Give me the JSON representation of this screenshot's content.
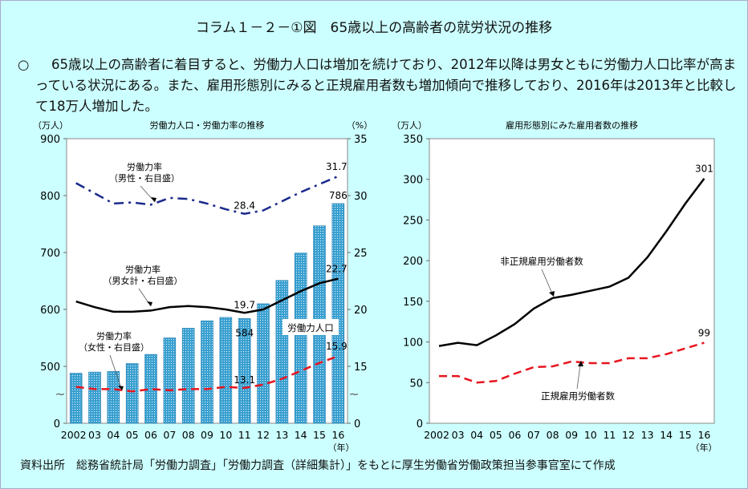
{
  "title": "コラム１－２－①図　65歳以上の高齢者の就労状況の推移",
  "summary": {
    "bullet": "○",
    "text": "65歳以上の高齢者に着目すると、労働力人口は増加を続けており、2012年以降は男女ともに労働力人口比率が高まっている状況にある。また、雇用形態別にみると正規雇用者数も増加傾向で推移しており、2016年は2013年と比較して18万人増加した。"
  },
  "source": "資料出所　総務省統計局「労働力調査」「労働力調査（詳細集計）」をもとに厚生労働省労働政策担当参事官室にて作成",
  "chart_data": [
    {
      "type": "bar+line",
      "title": "労働力人口・労働力率の推移",
      "ylabel": "（万人）",
      "y2label": "（%）",
      "xlabel": "（年）",
      "categories": [
        "2002",
        "03",
        "04",
        "05",
        "06",
        "07",
        "08",
        "09",
        "10",
        "11",
        "12",
        "13",
        "14",
        "15",
        "16"
      ],
      "yticks": [
        0,
        500,
        600,
        700,
        800,
        900
      ],
      "y2ticks": [
        0,
        15,
        20,
        25,
        30,
        35
      ],
      "ylim": [
        0,
        900
      ],
      "y2lim": [
        0,
        35
      ],
      "axis_break": true,
      "series": [
        {
          "name": "労働力人口",
          "kind": "bar",
          "axis": "left",
          "color": "#3399cc",
          "values": [
            488,
            490,
            491,
            505,
            521,
            550,
            567,
            580,
            586,
            584,
            610,
            651,
            699,
            747,
            786
          ],
          "labels": {
            "9": "584",
            "14": "786"
          }
        },
        {
          "name": "労働力率（男性・右目盛）",
          "kind": "line",
          "axis": "right",
          "color": "#1a2a8c",
          "dash": "dashdot",
          "values": [
            31.1,
            30.2,
            29.3,
            29.4,
            29.2,
            29.8,
            29.7,
            29.3,
            28.8,
            28.4,
            28.7,
            29.5,
            30.3,
            31.0,
            31.7
          ],
          "labels": {
            "9": "28.4",
            "14": "31.7"
          }
        },
        {
          "name": "労働力率（男女計・右目盛）",
          "kind": "line",
          "axis": "right",
          "color": "#000000",
          "dash": "solid",
          "values": [
            20.7,
            20.2,
            19.8,
            19.8,
            19.9,
            20.2,
            20.3,
            20.2,
            20.0,
            19.7,
            20.0,
            20.8,
            21.6,
            22.3,
            22.7
          ],
          "labels": {
            "9": "19.7",
            "14": "22.7"
          }
        },
        {
          "name": "労働力率（女性・右目盛）",
          "kind": "line",
          "axis": "right",
          "color": "#e8141e",
          "dash": "dash",
          "values": [
            13.2,
            13.0,
            13.0,
            12.8,
            13.0,
            12.9,
            13.0,
            13.0,
            13.2,
            13.1,
            13.4,
            13.9,
            14.6,
            15.3,
            15.9
          ],
          "labels": {
            "9": "13.1",
            "14": "15.9"
          }
        }
      ],
      "annotations": {
        "male": [
          "労働力率",
          "（男性・右目盛）"
        ],
        "total": [
          "労働力率",
          "（男女計・右目盛）"
        ],
        "female": [
          "労働力率",
          "（女性・右目盛）"
        ],
        "bar": "労働力人口"
      }
    },
    {
      "type": "line",
      "title": "雇用形態別にみた雇用者数の推移",
      "ylabel": "（万人）",
      "xlabel": "（年）",
      "categories": [
        "2002",
        "03",
        "04",
        "05",
        "06",
        "07",
        "08",
        "09",
        "10",
        "11",
        "12",
        "13",
        "14",
        "15",
        "16"
      ],
      "yticks": [
        0,
        50,
        100,
        150,
        200,
        250,
        300,
        350
      ],
      "ylim": [
        0,
        350
      ],
      "series": [
        {
          "name": "非正規雇用労働者数",
          "color": "#000000",
          "dash": "solid",
          "values": [
            95,
            99,
            96,
            108,
            122,
            141,
            154,
            158,
            163,
            168,
            179,
            204,
            236,
            270,
            301
          ],
          "labels": {
            "14": "301"
          }
        },
        {
          "name": "正規雇用労働者数",
          "color": "#e8141e",
          "dash": "dash",
          "values": [
            58,
            58,
            50,
            52,
            61,
            69,
            70,
            76,
            74,
            74,
            80,
            80,
            85,
            92,
            99
          ],
          "labels": {
            "14": "99"
          }
        }
      ]
    }
  ]
}
